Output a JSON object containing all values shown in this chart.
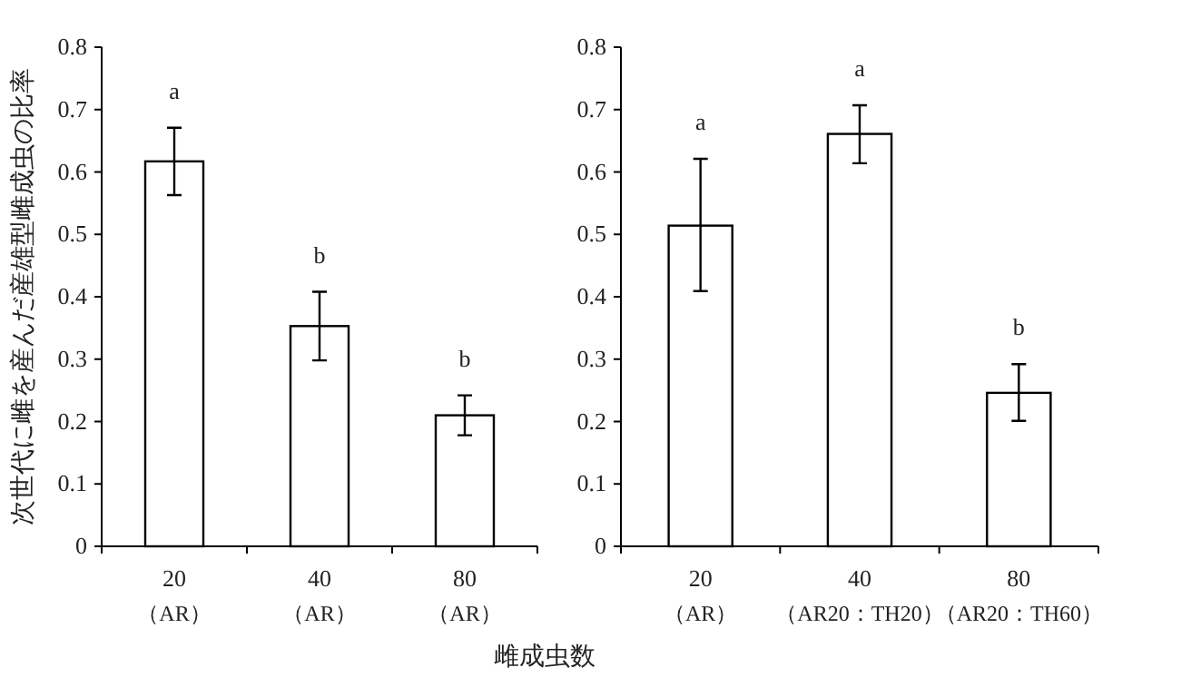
{
  "chart_data": [
    {
      "type": "bar",
      "ylabel": "次世代に雌を産んだ産雄型雌成虫の比率",
      "xlabel": "雌成虫数",
      "categories": [
        "20（AR）",
        "40（AR）",
        "80（AR）"
      ],
      "values": [
        0.617,
        0.353,
        0.21
      ],
      "errors": [
        [
          0.563,
          0.671
        ],
        [
          0.298,
          0.408
        ],
        [
          0.178,
          0.242
        ]
      ],
      "color": "#ffffff",
      "ylim": [
        0,
        0.8
      ],
      "yticks": [
        0,
        0.1,
        0.2,
        0.3,
        0.4,
        0.5,
        0.6,
        0.7,
        0.8
      ],
      "grid": false,
      "annotations": [
        "a",
        "b",
        "b"
      ]
    },
    {
      "type": "bar",
      "categories": [
        "20（AR）",
        "40（AR20：TH20）",
        "80（AR20：TH60）"
      ],
      "values": [
        0.514,
        0.661,
        0.246
      ],
      "errors": [
        [
          0.409,
          0.621
        ],
        [
          0.614,
          0.707
        ],
        [
          0.201,
          0.292
        ]
      ],
      "color": "#ffffff",
      "ylim": [
        0,
        0.8
      ],
      "yticks": [
        0,
        0.1,
        0.2,
        0.3,
        0.4,
        0.5,
        0.6,
        0.7,
        0.8
      ],
      "grid": false,
      "annotations": [
        "a",
        "a",
        "b"
      ]
    }
  ]
}
